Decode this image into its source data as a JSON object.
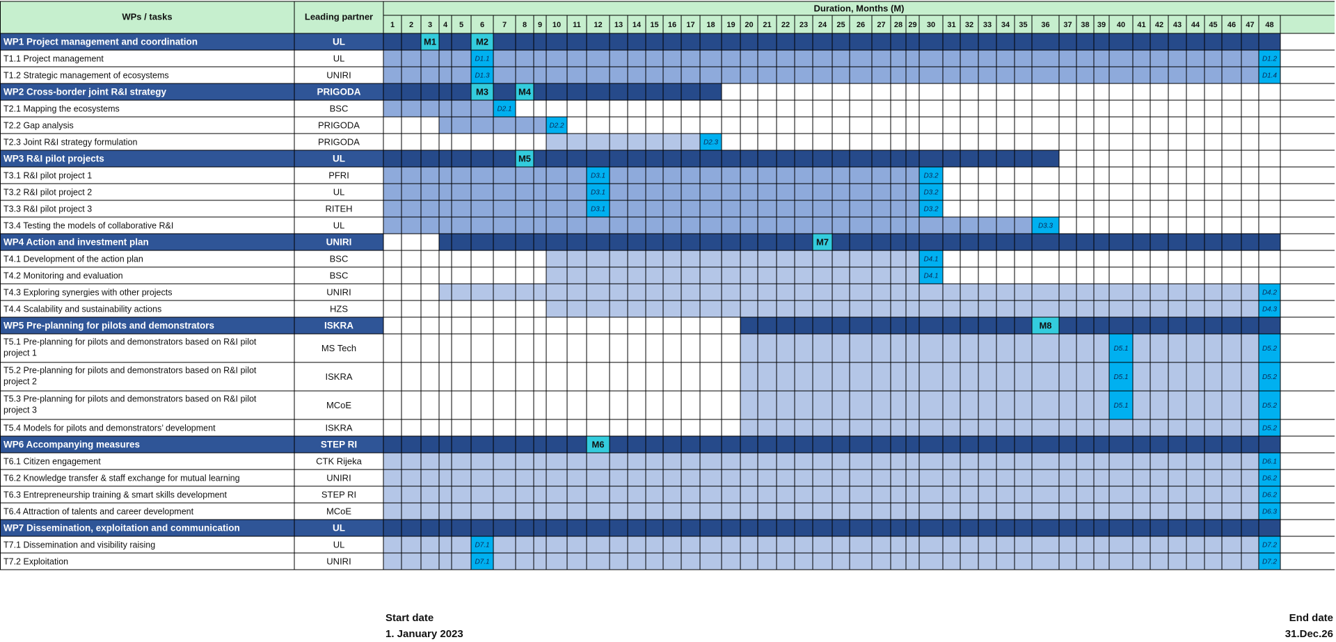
{
  "header": {
    "col_tasks": "WPs / tasks",
    "col_partner": "Leading partner",
    "duration_title": "Duration, Months (M)"
  },
  "months": [
    1,
    2,
    3,
    4,
    5,
    6,
    7,
    8,
    9,
    10,
    11,
    12,
    13,
    14,
    15,
    16,
    17,
    18,
    19,
    20,
    21,
    22,
    23,
    24,
    25,
    26,
    27,
    28,
    29,
    30,
    31,
    32,
    33,
    34,
    35,
    36,
    37,
    38,
    39,
    40,
    41,
    42,
    43,
    44,
    45,
    46,
    47,
    48
  ],
  "colors": {
    "header_bg": "#c6efce",
    "wp_row": "#2f5597",
    "wp_task_span": "#264a8a",
    "task_active": "#8eaadb",
    "task_active_light": "#b4c6e7",
    "milestone": "#00b0f0",
    "milestone_on_wp": "#33ccdd",
    "white": "#ffffff",
    "grid": "#000000"
  },
  "rows": [
    {
      "label": "WP1 Project management and coordination",
      "partner": "UL",
      "kind": "wp",
      "start": 1,
      "end": 48,
      "marks": [
        {
          "m": 3,
          "t": "M1"
        },
        {
          "m": 6,
          "t": "M2"
        }
      ]
    },
    {
      "label": "T1.1 Project management",
      "partner": "UL",
      "kind": "task",
      "start": 1,
      "end": 48,
      "marks": [
        {
          "m": 6,
          "t": "D1.1"
        },
        {
          "m": 48,
          "t": "D1.2"
        }
      ]
    },
    {
      "label": "T1.2 Strategic management of ecosystems",
      "partner": "UNIRI",
      "kind": "task",
      "start": 1,
      "end": 48,
      "marks": [
        {
          "m": 6,
          "t": "D1.3"
        },
        {
          "m": 48,
          "t": "D1.4"
        }
      ]
    },
    {
      "label": "WP2 Cross-border joint R&I strategy",
      "partner": "PRIGODA",
      "kind": "wp",
      "start": 1,
      "end": 18,
      "marks": [
        {
          "m": 6,
          "t": "M3"
        },
        {
          "m": 8,
          "t": "M4"
        }
      ]
    },
    {
      "label": "T2.1 Mapping the ecosystems",
      "partner": "BSC",
      "kind": "task",
      "start": 1,
      "end": 7,
      "marks": [
        {
          "m": 7,
          "t": "D2.1"
        }
      ]
    },
    {
      "label": "T2.2 Gap analysis",
      "partner": "PRIGODA",
      "kind": "task",
      "start": 4,
      "end": 10,
      "marks": [
        {
          "m": 10,
          "t": "D2.2"
        }
      ]
    },
    {
      "label": "T2.3 Joint R&I strategy formulation",
      "partner": "PRIGODA",
      "kind": "task",
      "start": 10,
      "end": 18,
      "marks": [
        {
          "m": 18,
          "t": "D2.3"
        }
      ]
    },
    {
      "label": "WP3 R&I pilot projects",
      "partner": "UL",
      "kind": "wp",
      "start": 1,
      "end": 36,
      "marks": [
        {
          "m": 8,
          "t": "M5"
        }
      ]
    },
    {
      "label": "T3.1 R&I pilot project 1",
      "partner": "PFRI",
      "kind": "task",
      "start": 1,
      "end": 30,
      "marks": [
        {
          "m": 12,
          "t": "D3.1"
        },
        {
          "m": 30,
          "t": "D3.2"
        }
      ]
    },
    {
      "label": "T3.2 R&I pilot project 2",
      "partner": "UL",
      "kind": "task",
      "start": 1,
      "end": 30,
      "marks": [
        {
          "m": 12,
          "t": "D3.1"
        },
        {
          "m": 30,
          "t": "D3.2"
        }
      ]
    },
    {
      "label": "T3.3 R&I pilot project 3",
      "partner": "RITEH",
      "kind": "task",
      "start": 1,
      "end": 30,
      "marks": [
        {
          "m": 12,
          "t": "D3.1"
        },
        {
          "m": 30,
          "t": "D3.2"
        }
      ]
    },
    {
      "label": "T3.4 Testing the models of collaborative R&I",
      "partner": "UL",
      "kind": "task",
      "start": 1,
      "end": 36,
      "marks": [
        {
          "m": 36,
          "t": "D3.3"
        }
      ]
    },
    {
      "label": "WP4 Action and investment plan",
      "partner": "UNIRI",
      "kind": "wp",
      "start": 4,
      "end": 48,
      "marks": [
        {
          "m": 24,
          "t": "M7"
        }
      ]
    },
    {
      "label": "T4.1 Development of the action plan",
      "partner": "BSC",
      "kind": "task",
      "start": 10,
      "end": 30,
      "marks": [
        {
          "m": 30,
          "t": "D4.1"
        }
      ]
    },
    {
      "label": "T4.2 Monitoring and evaluation",
      "partner": "BSC",
      "kind": "task",
      "start": 10,
      "end": 30,
      "marks": [
        {
          "m": 30,
          "t": "D4.1"
        }
      ]
    },
    {
      "label": "T4.3 Exploring synergies with other projects",
      "partner": "UNIRI",
      "kind": "task",
      "start": 4,
      "end": 48,
      "marks": [
        {
          "m": 48,
          "t": "D4.2"
        }
      ]
    },
    {
      "label": "T4.4 Scalability and sustainability actions",
      "partner": "HZS",
      "kind": "task",
      "start": 10,
      "end": 48,
      "marks": [
        {
          "m": 48,
          "t": "D4.3"
        }
      ]
    },
    {
      "label": "WP5 Pre-planning for pilots and demonstrators",
      "partner": "ISKRA",
      "kind": "wp",
      "start": 20,
      "end": 48,
      "marks": [
        {
          "m": 36,
          "t": "M8"
        }
      ]
    },
    {
      "label": "T5.1 Pre-planning for pilots and demonstrators based on R&I pilot project 1",
      "partner": "MS Tech",
      "kind": "task",
      "tall": true,
      "start": 20,
      "end": 48,
      "marks": [
        {
          "m": 40,
          "t": "D5.1"
        },
        {
          "m": 48,
          "t": "D5.2"
        }
      ]
    },
    {
      "label": "T5.2 Pre-planning for pilots and demonstrators based on R&I pilot project 2",
      "partner": "ISKRA",
      "kind": "task",
      "tall": true,
      "start": 20,
      "end": 48,
      "marks": [
        {
          "m": 40,
          "t": "D5.1"
        },
        {
          "m": 48,
          "t": "D5.2"
        }
      ]
    },
    {
      "label": "T5.3 Pre-planning for pilots and demonstrators based on R&I pilot project 3",
      "partner": "MCoE",
      "kind": "task",
      "tall": true,
      "start": 20,
      "end": 48,
      "marks": [
        {
          "m": 40,
          "t": "D5.1"
        },
        {
          "m": 48,
          "t": "D5.2"
        }
      ]
    },
    {
      "label": "T5.4 Models for pilots and demonstrators’ development",
      "partner": "ISKRA",
      "kind": "task",
      "start": 20,
      "end": 48,
      "marks": [
        {
          "m": 48,
          "t": "D5.2"
        }
      ]
    },
    {
      "label": "WP6 Accompanying measures",
      "partner": "STEP RI",
      "kind": "wp",
      "start": 1,
      "end": 48,
      "marks": [
        {
          "m": 12,
          "t": "M6"
        }
      ]
    },
    {
      "label": "T6.1 Citizen engagement",
      "partner": "CTK Rijeka",
      "kind": "task",
      "start": 1,
      "end": 48,
      "marks": [
        {
          "m": 48,
          "t": "D6.1"
        }
      ]
    },
    {
      "label": "T6.2 Knowledge transfer & staff exchange for mutual learning",
      "partner": "UNIRI",
      "kind": "task",
      "start": 1,
      "end": 48,
      "marks": [
        {
          "m": 48,
          "t": "D6.2"
        }
      ]
    },
    {
      "label": "T6.3 Entrepreneurship training & smart skills development",
      "partner": "STEP RI",
      "kind": "task",
      "start": 1,
      "end": 48,
      "marks": [
        {
          "m": 48,
          "t": "D6.2"
        }
      ]
    },
    {
      "label": "T6.4 Attraction of talents and career development",
      "partner": "MCoE",
      "kind": "task",
      "start": 1,
      "end": 48,
      "marks": [
        {
          "m": 48,
          "t": "D6.3"
        }
      ]
    },
    {
      "label": "WP7 Dissemination, exploitation and communication",
      "partner": "UL",
      "kind": "wp",
      "start": 1,
      "end": 48,
      "marks": []
    },
    {
      "label": "T7.1 Dissemination and visibility raising",
      "partner": "UL",
      "kind": "task",
      "start": 1,
      "end": 48,
      "marks": [
        {
          "m": 6,
          "t": "D7.1"
        },
        {
          "m": 48,
          "t": "D7.2"
        }
      ]
    },
    {
      "label": "T7.2 Exploitation",
      "partner": "UNIRI",
      "kind": "task",
      "start": 1,
      "end": 48,
      "marks": [
        {
          "m": 6,
          "t": "D7.1"
        },
        {
          "m": 48,
          "t": "D7.2"
        }
      ]
    }
  ],
  "footer": {
    "start_label": "Start date",
    "start_value": "1. January 2023",
    "end_label": "End date",
    "end_value": "31.Dec.26"
  }
}
